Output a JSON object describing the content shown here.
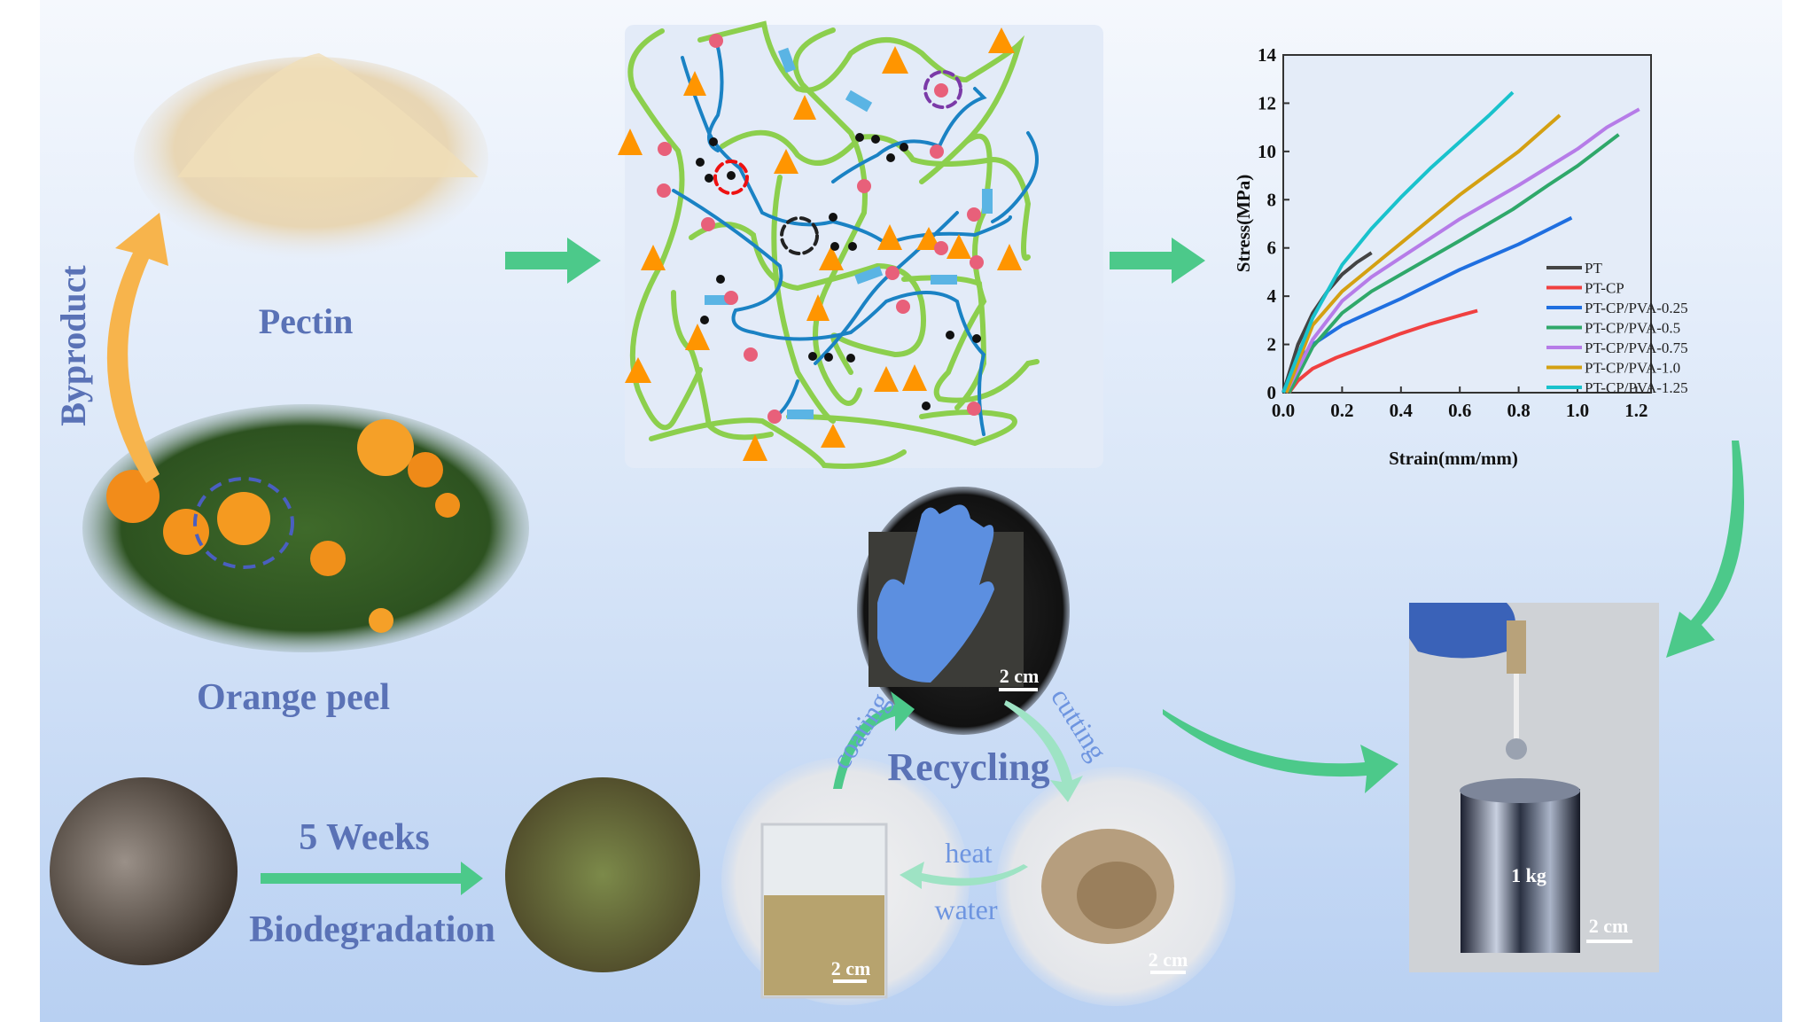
{
  "labels": {
    "byproduct": "Byproduct",
    "pectin": "Pectin",
    "orange_peel": "Orange peel",
    "recycling": "Recycling",
    "coating": "coating",
    "cutting": "cutting",
    "heat": "heat",
    "water": "water",
    "weeks": "5 Weeks",
    "biodegradation": "Biodegradation",
    "weight": "1 kg",
    "scale_bar": "2 cm"
  },
  "colors": {
    "title_text": "#5a72b6",
    "process_text": "#6e95e0",
    "arrow_green": "#4cc98a",
    "arrow_orange": "#f7b44c",
    "network_green": "#8ccf4d",
    "network_blue": "#1a82c4",
    "triangle_orange": "#ff9500",
    "crosslink_pink": "#e8607a"
  },
  "chart_data": {
    "type": "line",
    "xlabel": "Strain(mm/mm)",
    "ylabel": "Stress(MPa)",
    "xlim": [
      0,
      1.25
    ],
    "ylim": [
      0,
      14
    ],
    "xticks": [
      "0.0",
      "0.2",
      "0.4",
      "0.6",
      "0.8",
      "1.0",
      "1.2"
    ],
    "yticks": [
      "0",
      "2",
      "4",
      "6",
      "8",
      "10",
      "12",
      "14"
    ],
    "grid": false,
    "legend_position": "bottom-right",
    "series": [
      {
        "name": "PT",
        "color": "#444444",
        "x": [
          0,
          0.05,
          0.1,
          0.15,
          0.2,
          0.25,
          0.3
        ],
        "y": [
          0,
          2.0,
          3.3,
          4.2,
          4.9,
          5.4,
          5.8
        ]
      },
      {
        "name": "PT-CP",
        "color": "#f04040",
        "x": [
          0.02,
          0.05,
          0.1,
          0.18,
          0.3,
          0.4,
          0.5,
          0.6,
          0.66
        ],
        "y": [
          0,
          0.5,
          1.0,
          1.45,
          2.0,
          2.45,
          2.85,
          3.2,
          3.4
        ]
      },
      {
        "name": "PT-CP/PVA-0.25",
        "color": "#1f6fe0",
        "x": [
          0.01,
          0.05,
          0.1,
          0.2,
          0.3,
          0.4,
          0.6,
          0.8,
          0.98
        ],
        "y": [
          0,
          1.3,
          2.0,
          2.8,
          3.35,
          3.9,
          5.1,
          6.15,
          7.25
        ]
      },
      {
        "name": "PT-CP/PVA-0.5",
        "color": "#2fa86a",
        "x": [
          0.02,
          0.1,
          0.2,
          0.3,
          0.4,
          0.6,
          0.78,
          0.9,
          1.0,
          1.14
        ],
        "y": [
          0,
          1.9,
          3.3,
          4.2,
          4.9,
          6.3,
          7.6,
          8.6,
          9.4,
          10.7
        ]
      },
      {
        "name": "PT-CP/PVA-0.75",
        "color": "#b67ce8",
        "x": [
          0.01,
          0.1,
          0.2,
          0.3,
          0.4,
          0.6,
          0.8,
          1.0,
          1.1,
          1.21
        ],
        "y": [
          0,
          2.2,
          3.8,
          4.8,
          5.6,
          7.2,
          8.6,
          10.1,
          11.0,
          11.75
        ]
      },
      {
        "name": "PT-CP/PVA-1.0",
        "color": "#d4a012",
        "x": [
          0.01,
          0.1,
          0.2,
          0.3,
          0.4,
          0.5,
          0.6,
          0.8,
          0.94
        ],
        "y": [
          0,
          2.8,
          4.2,
          5.2,
          6.2,
          7.2,
          8.2,
          10.0,
          11.5
        ]
      },
      {
        "name": "PT-CP/PVA-1.25",
        "color": "#19c2cc",
        "x": [
          0,
          0.1,
          0.2,
          0.3,
          0.4,
          0.5,
          0.6,
          0.7,
          0.78
        ],
        "y": [
          0,
          3.1,
          5.3,
          6.8,
          8.1,
          9.3,
          10.4,
          11.5,
          12.45
        ]
      }
    ]
  }
}
